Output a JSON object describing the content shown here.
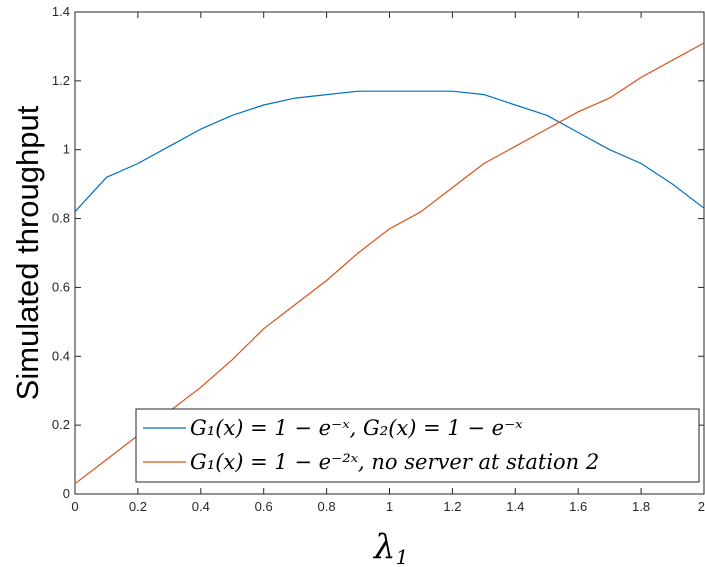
{
  "chart_data": {
    "type": "line",
    "title": "",
    "xlabel": "λ",
    "xlabel_sub": "1",
    "ylabel": "Simulated throughput",
    "xlim": [
      0,
      2
    ],
    "ylim": [
      0,
      1.4
    ],
    "xticks": [
      0,
      0.2,
      0.4,
      0.6,
      0.8,
      1,
      1.2,
      1.4,
      1.6,
      1.8,
      2
    ],
    "xtick_labels": [
      "0",
      "0.2",
      "0.4",
      "0.6",
      "0.8",
      "1",
      "1.2",
      "1.4",
      "1.6",
      "1.8",
      "2"
    ],
    "yticks": [
      0,
      0.2,
      0.4,
      0.6,
      0.8,
      1,
      1.2,
      1.4
    ],
    "ytick_labels": [
      "0",
      "0.2",
      "0.4",
      "0.6",
      "0.8",
      "1",
      "1.2",
      "1.4"
    ],
    "grid": false,
    "legend_position": "bottom-right",
    "x": [
      0,
      0.1,
      0.2,
      0.3,
      0.4,
      0.5,
      0.6,
      0.7,
      0.8,
      0.9,
      1.0,
      1.1,
      1.2,
      1.3,
      1.4,
      1.5,
      1.6,
      1.7,
      1.8,
      1.9,
      2.0
    ],
    "series": [
      {
        "name": "G₁(x) = 1 − e⁻ˣ, G₂(x) = 1 − e⁻ˣ",
        "color": "#0072BD",
        "values": [
          0.82,
          0.92,
          0.96,
          1.01,
          1.06,
          1.1,
          1.13,
          1.15,
          1.16,
          1.17,
          1.17,
          1.17,
          1.17,
          1.16,
          1.13,
          1.1,
          1.05,
          1.0,
          0.96,
          0.9,
          0.83
        ]
      },
      {
        "name": "G₁(x) = 1 − e⁻²ˣ, no server at station 2",
        "color": "#D95319",
        "values": [
          0.03,
          0.1,
          0.17,
          0.24,
          0.31,
          0.39,
          0.48,
          0.55,
          0.62,
          0.7,
          0.77,
          0.82,
          0.89,
          0.96,
          1.01,
          1.06,
          1.11,
          1.15,
          1.21,
          1.26,
          1.31
        ]
      }
    ],
    "legend": {
      "entries": [
        {
          "label": "G₁(x) = 1 − e⁻ˣ, G₂(x) = 1 − e⁻ˣ",
          "color": "#0072BD"
        },
        {
          "label": "G₁(x) = 1 − e⁻²ˣ, no server at station 2",
          "color": "#D95319"
        }
      ]
    }
  }
}
